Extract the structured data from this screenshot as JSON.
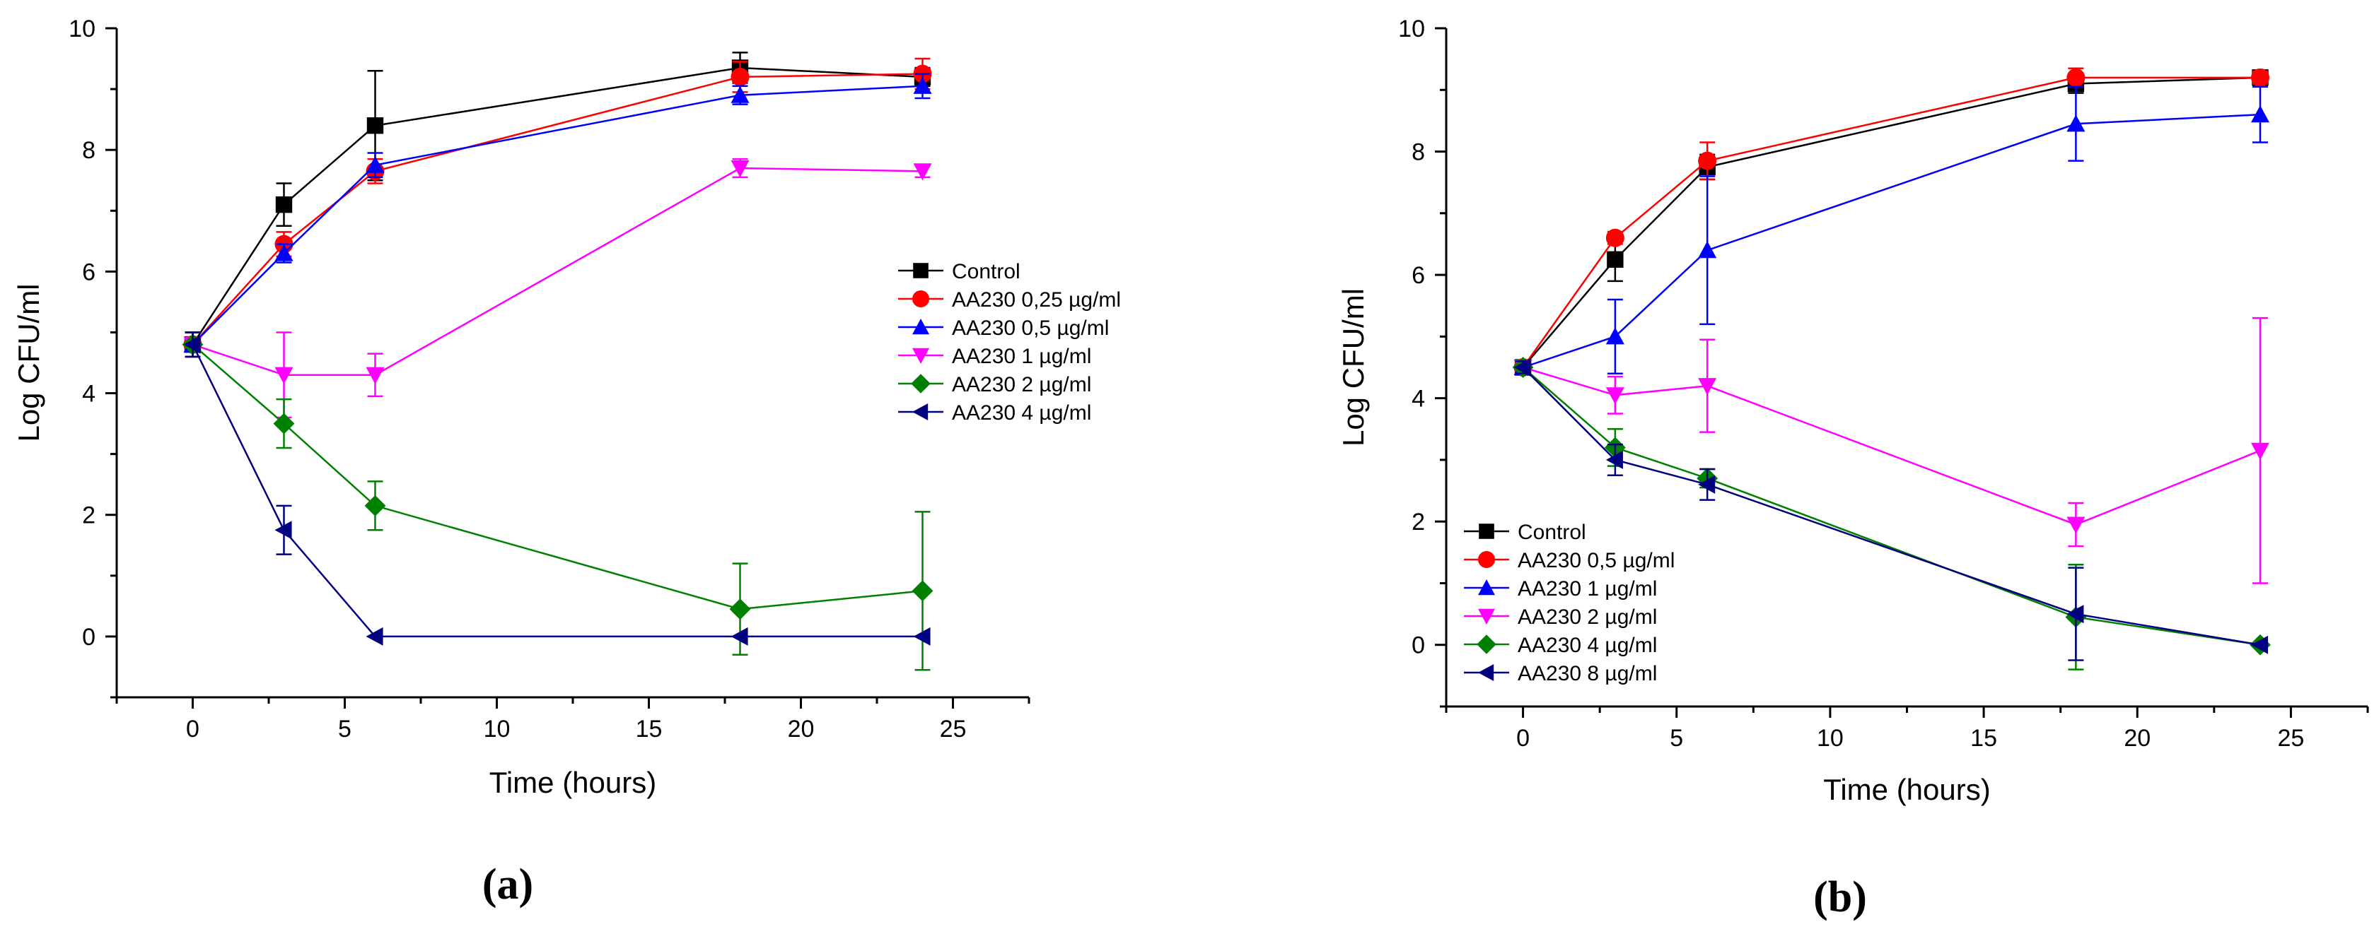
{
  "chart_data": [
    {
      "type": "line",
      "panel_label": "(a)",
      "xlabel": "Time (hours)",
      "ylabel": "Log CFU/ml",
      "xlim": [
        -2.5,
        27.5
      ],
      "ylim": [
        -1,
        10
      ],
      "xticks": [
        0,
        5,
        10,
        15,
        20,
        25
      ],
      "yticks": [
        0,
        2,
        4,
        6,
        8,
        10
      ],
      "legend_position": "center-right",
      "x": [
        0,
        3,
        6,
        18,
        24
      ],
      "series": [
        {
          "name": "Control",
          "color": "#000000",
          "marker": "square",
          "values": [
            4.8,
            7.1,
            8.4,
            9.35,
            9.2
          ],
          "errors": [
            0.2,
            0.35,
            0.9,
            0.25,
            0.15
          ]
        },
        {
          "name": "AA230 0,25 µg/ml",
          "color": "#ff0000",
          "marker": "circle",
          "values": [
            4.8,
            6.45,
            7.65,
            9.2,
            9.25
          ],
          "errors": [
            0.2,
            0.2,
            0.2,
            0.25,
            0.25
          ]
        },
        {
          "name": "AA230 0,5 µg/ml",
          "color": "#0000ff",
          "marker": "triangle-up",
          "values": [
            4.8,
            6.3,
            7.75,
            8.9,
            9.05
          ],
          "errors": [
            0.2,
            0.15,
            0.2,
            0.15,
            0.2
          ]
        },
        {
          "name": "AA230 1 µg/ml",
          "color": "#ff00ff",
          "marker": "triangle-down",
          "values": [
            4.8,
            4.3,
            4.3,
            7.7,
            7.65
          ],
          "errors": [
            0.2,
            0.7,
            0.35,
            0.15,
            0.1
          ]
        },
        {
          "name": "AA230 2 µg/ml",
          "color": "#008000",
          "marker": "diamond",
          "values": [
            4.8,
            3.5,
            2.15,
            0.45,
            0.75
          ],
          "errors": [
            0.2,
            0.4,
            0.4,
            0.75,
            1.3
          ]
        },
        {
          "name": "AA230 4 µg/ml",
          "color": "#000080",
          "marker": "triangle-left",
          "values": [
            4.8,
            1.75,
            0,
            0,
            0
          ],
          "errors": [
            0.2,
            0.4,
            0,
            0,
            0
          ]
        }
      ]
    },
    {
      "type": "line",
      "panel_label": "(b)",
      "xlabel": "Time (hours)",
      "ylabel": "Log CFU/ml",
      "xlim": [
        -2.5,
        27.5
      ],
      "ylim": [
        -1,
        10
      ],
      "xticks": [
        0,
        5,
        10,
        15,
        20,
        25
      ],
      "yticks": [
        0,
        2,
        4,
        6,
        8,
        10
      ],
      "legend_position": "lower-left",
      "x": [
        0,
        3,
        6,
        18,
        24
      ],
      "series": [
        {
          "name": "Control",
          "color": "#000000",
          "marker": "square",
          "values": [
            4.5,
            6.25,
            7.75,
            9.1,
            9.2
          ],
          "errors": [
            0.1,
            0.35,
            0.2,
            0.15,
            0.1
          ]
        },
        {
          "name": "AA230 0,5 µg/ml",
          "color": "#ff0000",
          "marker": "circle",
          "values": [
            4.5,
            6.6,
            7.85,
            9.2,
            9.2
          ],
          "errors": [
            0.1,
            0.1,
            0.3,
            0.15,
            0.1
          ]
        },
        {
          "name": "AA230 1 µg/ml",
          "color": "#0000ff",
          "marker": "triangle-up",
          "values": [
            4.5,
            5.0,
            6.4,
            8.45,
            8.6
          ],
          "errors": [
            0.1,
            0.6,
            1.2,
            0.6,
            0.45
          ]
        },
        {
          "name": "AA230 2 µg/ml",
          "color": "#ff00ff",
          "marker": "triangle-down",
          "values": [
            4.5,
            4.05,
            4.2,
            1.95,
            3.15
          ],
          "errors": [
            0.1,
            0.3,
            0.75,
            0.35,
            2.15
          ]
        },
        {
          "name": "AA230 4 µg/ml",
          "color": "#008000",
          "marker": "diamond",
          "values": [
            4.5,
            3.2,
            2.7,
            0.45,
            0
          ],
          "errors": [
            0.1,
            0.3,
            0.15,
            0.85,
            0
          ]
        },
        {
          "name": "AA230 8 µg/ml",
          "color": "#000080",
          "marker": "triangle-left",
          "values": [
            4.5,
            3.0,
            2.6,
            0.5,
            0
          ],
          "errors": [
            0.1,
            0.25,
            0.25,
            0.75,
            0
          ]
        }
      ]
    }
  ]
}
